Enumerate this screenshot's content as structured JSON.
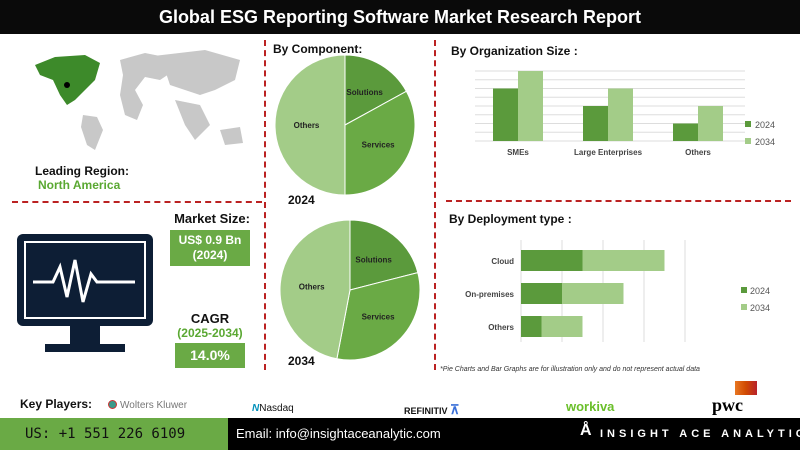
{
  "title": "Global ESG Reporting Software Market Research Report",
  "leading_region": {
    "label": "Leading Region:",
    "value": "North America"
  },
  "market_size": {
    "label": "Market Size:",
    "value": "US$ 0.9 Bn",
    "year": "(2024)"
  },
  "cagr": {
    "label": "CAGR",
    "period": "(2025-2034)",
    "value": "14.0%"
  },
  "component": {
    "heading": "By  Component:",
    "pies": [
      {
        "year": "2024",
        "slices": [
          {
            "name": "Solutions",
            "share": 17
          },
          {
            "name": "Services",
            "share": 33
          },
          {
            "name": "Others",
            "share": 50
          }
        ]
      },
      {
        "year": "2034",
        "slices": [
          {
            "name": "Solutions",
            "share": 21
          },
          {
            "name": "Services",
            "share": 32
          },
          {
            "name": "Others",
            "share": 47
          }
        ]
      }
    ]
  },
  "org_size": {
    "heading": "By Organization Size :"
  },
  "deployment": {
    "heading": "By Deployment type :"
  },
  "colors": {
    "dark": "#5b9a3c",
    "mid": "#6aaa45",
    "light": "#a3cc88",
    "red": "#b22222"
  },
  "chart_data": [
    {
      "type": "bar",
      "title": "By Organization Size :",
      "categories": [
        "SMEs",
        "Large Enterprises",
        "Others"
      ],
      "series": [
        {
          "name": "2024",
          "values": [
            6,
            4,
            2
          ]
        },
        {
          "name": "2034",
          "values": [
            8,
            6,
            4
          ]
        }
      ],
      "ylim": [
        0,
        8
      ],
      "grid": true,
      "legend": "right"
    },
    {
      "type": "bar",
      "orientation": "horizontal",
      "stacked": true,
      "title": "By Deployment type :",
      "categories": [
        "Cloud",
        "On-premises",
        "Others"
      ],
      "series": [
        {
          "name": "2024",
          "values": [
            3,
            2,
            1
          ]
        },
        {
          "name": "2034",
          "values": [
            4,
            3,
            2
          ]
        }
      ],
      "xlim": [
        0,
        8
      ],
      "grid": true,
      "legend": "right"
    }
  ],
  "disclaimer": "*Pie Charts and Bar Graphs are for illustration only and do not represent actual data",
  "key_players": {
    "label": "Key Players:",
    "items": [
      "Wolters Kluwer",
      "Nasdaq",
      "REFINITIV",
      "workiva",
      "pwc"
    ]
  },
  "footer": {
    "phone": "US: +1 551 226 6109",
    "email": "Email: info@insightaceanalytic.com",
    "brand": "INSIGHT ACE ANALYTIC"
  }
}
